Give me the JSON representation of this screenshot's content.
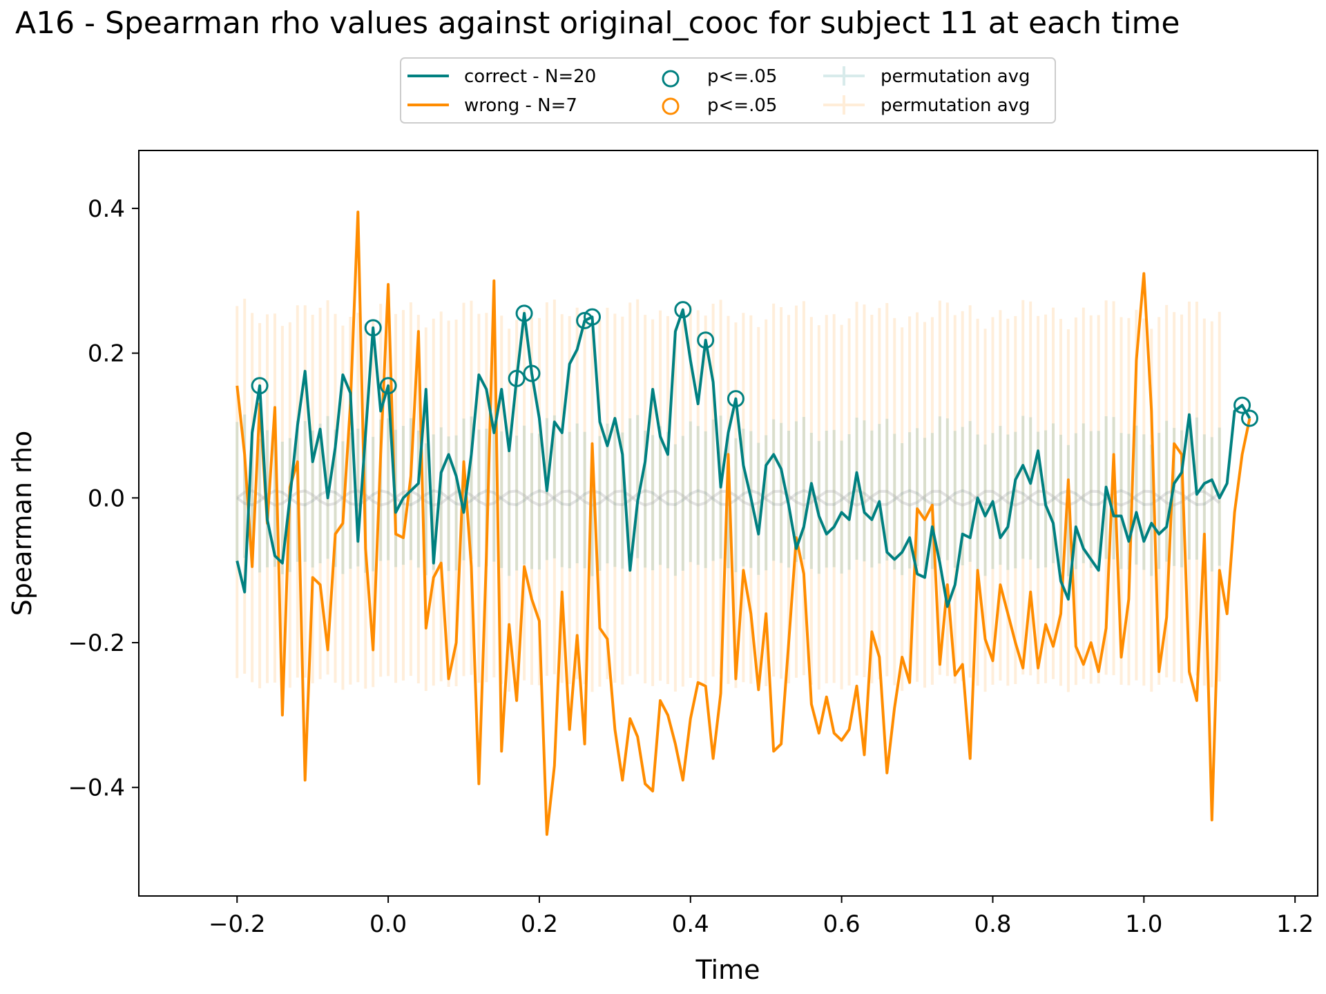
{
  "chart_data": {
    "type": "line",
    "title": "A16 - Spearman rho values against original_cooc for subject 11 at each time",
    "xlabel": "Time",
    "ylabel": "Spearman rho",
    "xlim": [
      -0.33,
      1.23
    ],
    "ylim": [
      -0.55,
      0.48
    ],
    "xticks": [
      -0.2,
      0.0,
      0.2,
      0.4,
      0.6,
      0.8,
      1.0,
      1.2
    ],
    "xtick_labels": [
      "−0.2",
      "0.0",
      "0.2",
      "0.4",
      "0.6",
      "0.8",
      "1.0",
      "1.2"
    ],
    "yticks": [
      -0.4,
      -0.2,
      0.0,
      0.2,
      0.4
    ],
    "ytick_labels": [
      "−0.4",
      "−0.2",
      "0.0",
      "0.2",
      "0.4"
    ],
    "grid": false,
    "legend_placement": "upper-center-outside",
    "legend": [
      {
        "label": "correct - N=20",
        "kind": "line",
        "color": "#008080"
      },
      {
        "label": "wrong - N=7",
        "kind": "line",
        "color": "#ff8c00"
      },
      {
        "label": "p<=.05",
        "kind": "marker",
        "color": "#008080"
      },
      {
        "label": "p<=.05",
        "kind": "marker",
        "color": "#ff8c00"
      },
      {
        "label": "permutation avg",
        "kind": "errorbar",
        "color": "#008080"
      },
      {
        "label": "permutation avg",
        "kind": "errorbar",
        "color": "#ff8c00"
      }
    ],
    "series": [
      {
        "name": "correct - N=20",
        "color": "#008080",
        "points": [
          [
            -0.2,
            -0.087
          ],
          [
            -0.19,
            -0.13
          ],
          [
            -0.18,
            0.09
          ],
          [
            -0.17,
            0.155
          ],
          [
            -0.16,
            -0.03
          ],
          [
            -0.15,
            -0.08
          ],
          [
            -0.14,
            -0.09
          ],
          [
            -0.13,
            0.0
          ],
          [
            -0.12,
            0.1
          ],
          [
            -0.11,
            0.175
          ],
          [
            -0.1,
            0.05
          ],
          [
            -0.09,
            0.095
          ],
          [
            -0.08,
            0.0
          ],
          [
            -0.07,
            0.07
          ],
          [
            -0.06,
            0.17
          ],
          [
            -0.05,
            0.145
          ],
          [
            -0.04,
            -0.06
          ],
          [
            -0.02,
            0.235
          ],
          [
            -0.01,
            0.12
          ],
          [
            0.0,
            0.155
          ],
          [
            0.01,
            -0.02
          ],
          [
            0.02,
            0.0
          ],
          [
            0.03,
            0.01
          ],
          [
            0.04,
            0.02
          ],
          [
            0.05,
            0.15
          ],
          [
            0.06,
            -0.09
          ],
          [
            0.07,
            0.035
          ],
          [
            0.08,
            0.06
          ],
          [
            0.09,
            0.03
          ],
          [
            0.1,
            -0.02
          ],
          [
            0.11,
            0.06
          ],
          [
            0.12,
            0.17
          ],
          [
            0.13,
            0.15
          ],
          [
            0.14,
            0.09
          ],
          [
            0.15,
            0.15
          ],
          [
            0.16,
            0.065
          ],
          [
            0.17,
            0.165
          ],
          [
            0.18,
            0.255
          ],
          [
            0.19,
            0.172
          ],
          [
            0.2,
            0.11
          ],
          [
            0.21,
            0.01
          ],
          [
            0.22,
            0.105
          ],
          [
            0.23,
            0.09
          ],
          [
            0.24,
            0.185
          ],
          [
            0.25,
            0.205
          ],
          [
            0.26,
            0.245
          ],
          [
            0.27,
            0.25
          ],
          [
            0.28,
            0.105
          ],
          [
            0.29,
            0.072
          ],
          [
            0.3,
            0.11
          ],
          [
            0.31,
            0.06
          ],
          [
            0.32,
            -0.1
          ],
          [
            0.33,
            -0.005
          ],
          [
            0.34,
            0.05
          ],
          [
            0.35,
            0.15
          ],
          [
            0.36,
            0.085
          ],
          [
            0.37,
            0.06
          ],
          [
            0.38,
            0.23
          ],
          [
            0.39,
            0.26
          ],
          [
            0.4,
            0.19
          ],
          [
            0.41,
            0.13
          ],
          [
            0.42,
            0.218
          ],
          [
            0.43,
            0.16
          ],
          [
            0.44,
            0.015
          ],
          [
            0.45,
            0.09
          ],
          [
            0.46,
            0.137
          ],
          [
            0.47,
            0.045
          ],
          [
            0.48,
            0.0
          ],
          [
            0.49,
            -0.05
          ],
          [
            0.5,
            0.045
          ],
          [
            0.51,
            0.06
          ],
          [
            0.52,
            0.04
          ],
          [
            0.53,
            -0.01
          ],
          [
            0.54,
            -0.07
          ],
          [
            0.55,
            -0.04
          ],
          [
            0.56,
            0.02
          ],
          [
            0.57,
            -0.025
          ],
          [
            0.58,
            -0.05
          ],
          [
            0.59,
            -0.04
          ],
          [
            0.6,
            -0.02
          ],
          [
            0.61,
            -0.03
          ],
          [
            0.62,
            0.035
          ],
          [
            0.63,
            -0.02
          ],
          [
            0.64,
            -0.03
          ],
          [
            0.65,
            -0.005
          ],
          [
            0.66,
            -0.075
          ],
          [
            0.67,
            -0.085
          ],
          [
            0.68,
            -0.075
          ],
          [
            0.69,
            -0.055
          ],
          [
            0.7,
            -0.105
          ],
          [
            0.71,
            -0.11
          ],
          [
            0.72,
            -0.04
          ],
          [
            0.73,
            -0.09
          ],
          [
            0.74,
            -0.15
          ],
          [
            0.75,
            -0.12
          ],
          [
            0.76,
            -0.05
          ],
          [
            0.77,
            -0.055
          ],
          [
            0.78,
            0.0
          ],
          [
            0.79,
            -0.025
          ],
          [
            0.8,
            -0.005
          ],
          [
            0.81,
            -0.055
          ],
          [
            0.82,
            -0.04
          ],
          [
            0.83,
            0.025
          ],
          [
            0.84,
            0.045
          ],
          [
            0.85,
            0.02
          ],
          [
            0.86,
            0.065
          ],
          [
            0.87,
            -0.01
          ],
          [
            0.88,
            -0.035
          ],
          [
            0.89,
            -0.115
          ],
          [
            0.9,
            -0.14
          ],
          [
            0.91,
            -0.04
          ],
          [
            0.92,
            -0.07
          ],
          [
            0.93,
            -0.085
          ],
          [
            0.94,
            -0.1
          ],
          [
            0.95,
            0.015
          ],
          [
            0.96,
            -0.025
          ],
          [
            0.97,
            -0.025
          ],
          [
            0.98,
            -0.06
          ],
          [
            0.99,
            -0.02
          ],
          [
            1.0,
            -0.06
          ],
          [
            1.01,
            -0.035
          ],
          [
            1.02,
            -0.05
          ],
          [
            1.03,
            -0.04
          ],
          [
            1.04,
            0.02
          ],
          [
            1.05,
            0.035
          ],
          [
            1.06,
            0.115
          ],
          [
            1.07,
            0.005
          ],
          [
            1.08,
            0.02
          ],
          [
            1.09,
            0.025
          ],
          [
            1.1,
            0.0
          ],
          [
            1.11,
            0.02
          ],
          [
            1.12,
            0.12
          ],
          [
            1.13,
            0.128
          ],
          [
            1.14,
            0.11
          ]
        ],
        "significant": [
          [
            -0.17,
            0.155
          ],
          [
            -0.02,
            0.235
          ],
          [
            0.0,
            0.155
          ],
          [
            0.17,
            0.165
          ],
          [
            0.18,
            0.255
          ],
          [
            0.19,
            0.172
          ],
          [
            0.26,
            0.245
          ],
          [
            0.27,
            0.25
          ],
          [
            0.39,
            0.26
          ],
          [
            0.42,
            0.218
          ],
          [
            0.46,
            0.137
          ],
          [
            1.13,
            0.128
          ],
          [
            1.14,
            0.11
          ]
        ]
      },
      {
        "name": "wrong - N=7",
        "color": "#ff8c00",
        "points": [
          [
            -0.2,
            0.155
          ],
          [
            -0.19,
            0.06
          ],
          [
            -0.18,
            -0.095
          ],
          [
            -0.17,
            0.13
          ],
          [
            -0.16,
            -0.035
          ],
          [
            -0.15,
            0.125
          ],
          [
            -0.14,
            -0.3
          ],
          [
            -0.13,
            0.015
          ],
          [
            -0.12,
            0.05
          ],
          [
            -0.11,
            -0.39
          ],
          [
            -0.1,
            -0.11
          ],
          [
            -0.09,
            -0.12
          ],
          [
            -0.08,
            -0.21
          ],
          [
            -0.07,
            -0.05
          ],
          [
            -0.06,
            -0.035
          ],
          [
            -0.05,
            0.13
          ],
          [
            -0.04,
            0.395
          ],
          [
            -0.03,
            -0.07
          ],
          [
            -0.02,
            -0.21
          ],
          [
            -0.01,
            0.06
          ],
          [
            0.0,
            0.295
          ],
          [
            0.01,
            -0.05
          ],
          [
            0.02,
            -0.055
          ],
          [
            0.03,
            0.03
          ],
          [
            0.04,
            0.23
          ],
          [
            0.05,
            -0.18
          ],
          [
            0.06,
            -0.11
          ],
          [
            0.07,
            -0.09
          ],
          [
            0.08,
            -0.25
          ],
          [
            0.09,
            -0.2
          ],
          [
            0.1,
            0.05
          ],
          [
            0.11,
            -0.095
          ],
          [
            0.12,
            -0.395
          ],
          [
            0.13,
            -0.08
          ],
          [
            0.14,
            0.3
          ],
          [
            0.15,
            -0.35
          ],
          [
            0.16,
            -0.175
          ],
          [
            0.17,
            -0.28
          ],
          [
            0.18,
            -0.095
          ],
          [
            0.19,
            -0.14
          ],
          [
            0.2,
            -0.17
          ],
          [
            0.21,
            -0.465
          ],
          [
            0.22,
            -0.37
          ],
          [
            0.23,
            -0.13
          ],
          [
            0.24,
            -0.32
          ],
          [
            0.25,
            -0.19
          ],
          [
            0.26,
            -0.34
          ],
          [
            0.27,
            0.075
          ],
          [
            0.28,
            -0.18
          ],
          [
            0.29,
            -0.195
          ],
          [
            0.3,
            -0.32
          ],
          [
            0.31,
            -0.39
          ],
          [
            0.32,
            -0.305
          ],
          [
            0.33,
            -0.33
          ],
          [
            0.34,
            -0.395
          ],
          [
            0.35,
            -0.405
          ],
          [
            0.36,
            -0.28
          ],
          [
            0.37,
            -0.3
          ],
          [
            0.38,
            -0.34
          ],
          [
            0.39,
            -0.39
          ],
          [
            0.4,
            -0.305
          ],
          [
            0.41,
            -0.255
          ],
          [
            0.42,
            -0.26
          ],
          [
            0.43,
            -0.36
          ],
          [
            0.44,
            -0.27
          ],
          [
            0.45,
            0.06
          ],
          [
            0.46,
            -0.25
          ],
          [
            0.47,
            -0.1
          ],
          [
            0.48,
            -0.16
          ],
          [
            0.49,
            -0.265
          ],
          [
            0.5,
            -0.16
          ],
          [
            0.51,
            -0.35
          ],
          [
            0.52,
            -0.34
          ],
          [
            0.53,
            -0.2
          ],
          [
            0.54,
            -0.055
          ],
          [
            0.55,
            -0.105
          ],
          [
            0.56,
            -0.285
          ],
          [
            0.57,
            -0.325
          ],
          [
            0.58,
            -0.275
          ],
          [
            0.59,
            -0.325
          ],
          [
            0.6,
            -0.335
          ],
          [
            0.61,
            -0.32
          ],
          [
            0.62,
            -0.26
          ],
          [
            0.63,
            -0.355
          ],
          [
            0.64,
            -0.185
          ],
          [
            0.65,
            -0.22
          ],
          [
            0.66,
            -0.38
          ],
          [
            0.67,
            -0.29
          ],
          [
            0.68,
            -0.22
          ],
          [
            0.69,
            -0.255
          ],
          [
            0.7,
            -0.015
          ],
          [
            0.71,
            -0.03
          ],
          [
            0.72,
            -0.01
          ],
          [
            0.73,
            -0.23
          ],
          [
            0.74,
            -0.12
          ],
          [
            0.75,
            -0.245
          ],
          [
            0.76,
            -0.23
          ],
          [
            0.77,
            -0.36
          ],
          [
            0.78,
            -0.1
          ],
          [
            0.79,
            -0.195
          ],
          [
            0.8,
            -0.225
          ],
          [
            0.81,
            -0.12
          ],
          [
            0.82,
            -0.16
          ],
          [
            0.83,
            -0.2
          ],
          [
            0.84,
            -0.235
          ],
          [
            0.85,
            -0.13
          ],
          [
            0.86,
            -0.235
          ],
          [
            0.87,
            -0.175
          ],
          [
            0.88,
            -0.205
          ],
          [
            0.89,
            -0.16
          ],
          [
            0.9,
            0.025
          ],
          [
            0.91,
            -0.205
          ],
          [
            0.92,
            -0.23
          ],
          [
            0.93,
            -0.2
          ],
          [
            0.94,
            -0.24
          ],
          [
            0.95,
            -0.18
          ],
          [
            0.96,
            0.06
          ],
          [
            0.97,
            -0.22
          ],
          [
            0.98,
            -0.14
          ],
          [
            0.99,
            0.19
          ],
          [
            1.0,
            0.31
          ],
          [
            1.01,
            0.12
          ],
          [
            1.02,
            -0.24
          ],
          [
            1.03,
            -0.165
          ],
          [
            1.04,
            0.075
          ],
          [
            1.05,
            0.06
          ],
          [
            1.06,
            -0.24
          ],
          [
            1.07,
            -0.28
          ],
          [
            1.08,
            -0.05
          ],
          [
            1.09,
            -0.445
          ],
          [
            1.1,
            -0.1
          ],
          [
            1.11,
            -0.16
          ],
          [
            1.12,
            -0.02
          ],
          [
            1.13,
            0.06
          ],
          [
            1.14,
            0.11
          ]
        ],
        "significant": []
      }
    ],
    "permutation": {
      "x_start": -0.2,
      "x_end": 1.1,
      "n_bars": 131,
      "correct": {
        "name": "permutation avg",
        "color": "#008080",
        "mean": 0.0,
        "err": 0.095
      },
      "wrong": {
        "name": "permutation avg",
        "color": "#ff8c00",
        "mean": 0.0,
        "err": 0.255
      }
    }
  }
}
